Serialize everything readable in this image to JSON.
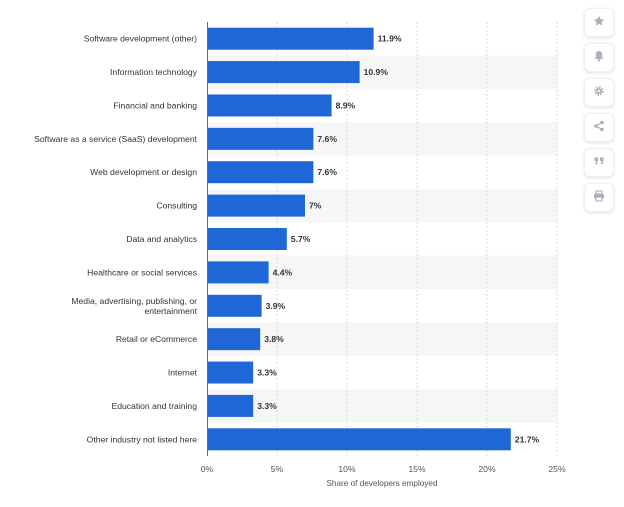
{
  "chart_data": {
    "type": "bar",
    "orientation": "horizontal",
    "categories": [
      [
        "Software development (other)"
      ],
      [
        "Information technology"
      ],
      [
        "Financial and banking"
      ],
      [
        "Software as a service (SaaS) development"
      ],
      [
        "Web development or design"
      ],
      [
        "Consulting"
      ],
      [
        "Data and analytics"
      ],
      [
        "Healthcare or social services"
      ],
      [
        "Media, advertising, publishing, or",
        "entertainment"
      ],
      [
        "Retail or eCommerce"
      ],
      [
        "Internet"
      ],
      [
        "Education and training"
      ],
      [
        "Other industry not listed here"
      ]
    ],
    "values": [
      11.9,
      10.9,
      8.9,
      7.6,
      7.6,
      7,
      5.7,
      4.4,
      3.9,
      3.8,
      3.3,
      3.3,
      21.7
    ],
    "value_labels": [
      "11.9%",
      "10.9%",
      "8.9%",
      "7.6%",
      "7.6%",
      "7%",
      "5.7%",
      "4.4%",
      "3.9%",
      "3.8%",
      "3.3%",
      "3.3%",
      "21.7%"
    ],
    "xlim": [
      0,
      25
    ],
    "xticks": [
      0,
      5,
      10,
      15,
      20,
      25
    ],
    "xtick_labels": [
      "0%",
      "5%",
      "10%",
      "15%",
      "20%",
      "25%"
    ],
    "xlabel": "Share of developers employed",
    "ylabel": "",
    "title": "",
    "grid": true,
    "bar_color": "#1f66d6",
    "band_color": "#f6f6f6"
  },
  "toolbar": {
    "buttons": [
      {
        "name": "star-icon",
        "label": "Favorite"
      },
      {
        "name": "bell-icon",
        "label": "Notifications"
      },
      {
        "name": "gear-icon",
        "label": "Settings"
      },
      {
        "name": "share-icon",
        "label": "Share"
      },
      {
        "name": "quote-icon",
        "label": "Cite"
      },
      {
        "name": "print-icon",
        "label": "Print"
      }
    ],
    "icon_color": "#a9b1bd"
  }
}
